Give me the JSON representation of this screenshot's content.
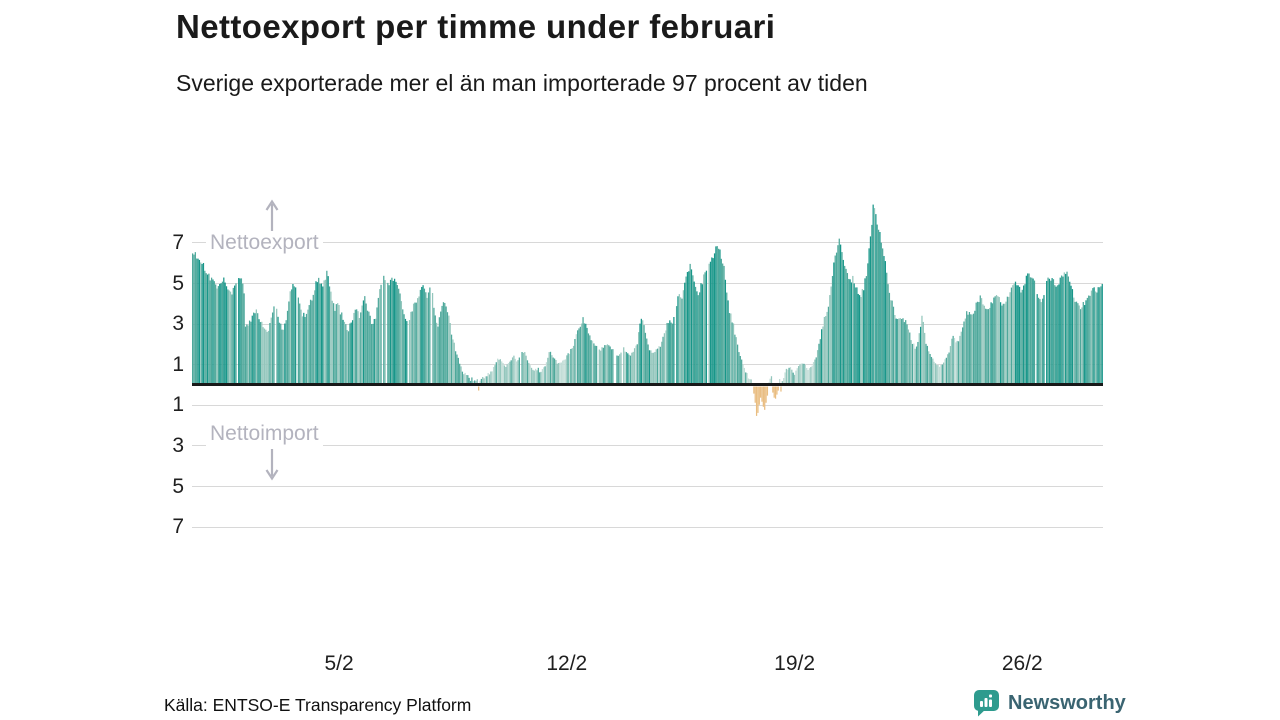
{
  "header": {
    "title": "Nettoexport per timme under februari",
    "subtitle": "Sverige exporterade mer el än man importerade 97 procent av tiden"
  },
  "footer": {
    "source": "Källa: ENTSO-E Transparency Platform",
    "brand": "Newsworthy"
  },
  "chart_data": {
    "type": "bar",
    "title": "Nettoexport per timme under februari",
    "subtitle": "Sverige exporterade mer el än man importerade 97 procent av tiden",
    "resolution": "hourly",
    "hours_total": 672,
    "direction_labels": {
      "positive": "Nettoexport",
      "negative": "Nettoimport"
    },
    "x_ticks": [
      {
        "label": "5/2",
        "hour": 108
      },
      {
        "label": "12/2",
        "hour": 276
      },
      {
        "label": "19/2",
        "hour": 444
      },
      {
        "label": "26/2",
        "hour": 612
      }
    ],
    "y_ticks": [
      7,
      5,
      3,
      1,
      -1,
      -3,
      -5,
      -7
    ],
    "ylim": [
      -7.9,
      9.4
    ],
    "grid": true,
    "colors": {
      "export_dark": "#189689",
      "export_mid": "#4ea89b",
      "export_light": "#93c6bc",
      "export_pale": "#c2ddd7",
      "import": "#e9bd81",
      "grid": "#d8d8d8",
      "zero_line": "#191919",
      "direction_label": "#b3b3be",
      "brand_teal": "#2e9b8e",
      "brand_text": "#3a6471"
    },
    "series_anchors": [
      [
        0,
        6.55
      ],
      [
        2,
        6.4
      ],
      [
        4,
        6.2
      ],
      [
        6,
        6.05
      ],
      [
        8,
        5.9
      ],
      [
        10,
        5.65
      ],
      [
        12,
        5.45
      ],
      [
        14,
        5.15
      ],
      [
        16,
        5.0
      ],
      [
        18,
        4.8
      ],
      [
        20,
        4.85
      ],
      [
        22,
        5.05
      ],
      [
        23,
        5.15
      ],
      [
        25,
        4.75
      ],
      [
        27,
        4.55
      ],
      [
        29,
        4.45
      ],
      [
        31,
        4.9
      ],
      [
        33,
        5.3
      ],
      [
        35,
        5.35
      ],
      [
        37,
        5.1
      ],
      [
        38,
        4.4
      ],
      [
        39,
        2.9
      ],
      [
        41,
        3.0
      ],
      [
        43,
        3.15
      ],
      [
        45,
        3.5
      ],
      [
        47,
        3.6
      ],
      [
        49,
        3.3
      ],
      [
        51,
        3.0
      ],
      [
        53,
        2.75
      ],
      [
        55,
        2.6
      ],
      [
        57,
        2.95
      ],
      [
        59,
        3.6
      ],
      [
        61,
        3.9
      ],
      [
        63,
        3.45
      ],
      [
        65,
        2.9
      ],
      [
        67,
        2.7
      ],
      [
        69,
        3.3
      ],
      [
        71,
        4.2
      ],
      [
        73,
        4.85
      ],
      [
        75,
        4.95
      ],
      [
        77,
        4.5
      ],
      [
        79,
        3.9
      ],
      [
        81,
        3.5
      ],
      [
        83,
        3.45
      ],
      [
        85,
        3.8
      ],
      [
        87,
        4.1
      ],
      [
        89,
        4.5
      ],
      [
        91,
        5.0
      ],
      [
        93,
        5.2
      ],
      [
        95,
        4.9
      ],
      [
        97,
        5.1
      ],
      [
        99,
        5.55
      ],
      [
        101,
        5.0
      ],
      [
        103,
        4.15
      ],
      [
        105,
        3.8
      ],
      [
        107,
        4.05
      ],
      [
        109,
        3.6
      ],
      [
        111,
        3.3
      ],
      [
        113,
        2.9
      ],
      [
        115,
        2.75
      ],
      [
        117,
        3.1
      ],
      [
        119,
        3.5
      ],
      [
        121,
        3.65
      ],
      [
        123,
        3.4
      ],
      [
        125,
        3.9
      ],
      [
        127,
        4.25
      ],
      [
        129,
        3.8
      ],
      [
        131,
        3.3
      ],
      [
        133,
        3.0
      ],
      [
        135,
        3.4
      ],
      [
        137,
        4.2
      ],
      [
        139,
        5.0
      ],
      [
        141,
        5.3
      ],
      [
        143,
        5.1
      ],
      [
        145,
        4.85
      ],
      [
        147,
        5.25
      ],
      [
        149,
        5.1
      ],
      [
        151,
        4.85
      ],
      [
        153,
        4.5
      ],
      [
        155,
        3.6
      ],
      [
        157,
        3.3
      ],
      [
        159,
        3.15
      ],
      [
        161,
        3.5
      ],
      [
        163,
        3.9
      ],
      [
        165,
        4.2
      ],
      [
        167,
        4.5
      ],
      [
        169,
        4.95
      ],
      [
        171,
        4.7
      ],
      [
        173,
        4.4
      ],
      [
        175,
        4.85
      ],
      [
        177,
        4.4
      ],
      [
        179,
        3.4
      ],
      [
        181,
        3.0
      ],
      [
        183,
        3.5
      ],
      [
        185,
        4.0
      ],
      [
        187,
        3.8
      ],
      [
        189,
        3.3
      ],
      [
        191,
        2.6
      ],
      [
        193,
        2.0
      ],
      [
        195,
        1.5
      ],
      [
        197,
        1.1
      ],
      [
        199,
        0.75
      ],
      [
        201,
        0.5
      ],
      [
        203,
        0.4
      ],
      [
        205,
        0.3
      ],
      [
        207,
        0.25
      ],
      [
        209,
        0.3
      ],
      [
        210,
        0.25
      ],
      [
        211,
        -0.2
      ],
      [
        212,
        0.25
      ],
      [
        214,
        0.35
      ],
      [
        217,
        0.5
      ],
      [
        220,
        0.65
      ],
      [
        223,
        1.0
      ],
      [
        225,
        1.3
      ],
      [
        227,
        1.25
      ],
      [
        229,
        1.05
      ],
      [
        231,
        0.9
      ],
      [
        233,
        1.1
      ],
      [
        235,
        1.25
      ],
      [
        237,
        1.4
      ],
      [
        239,
        1.15
      ],
      [
        241,
        1.3
      ],
      [
        243,
        1.55
      ],
      [
        245,
        1.6
      ],
      [
        247,
        1.2
      ],
      [
        249,
        0.95
      ],
      [
        251,
        0.7
      ],
      [
        253,
        0.8
      ],
      [
        255,
        0.75
      ],
      [
        257,
        0.6
      ],
      [
        259,
        0.8
      ],
      [
        261,
        1.1
      ],
      [
        263,
        1.7
      ],
      [
        265,
        1.5
      ],
      [
        267,
        1.3
      ],
      [
        269,
        1.05
      ],
      [
        271,
        1.1
      ],
      [
        273,
        1.15
      ],
      [
        275,
        1.3
      ],
      [
        277,
        1.5
      ],
      [
        279,
        1.7
      ],
      [
        281,
        2.0
      ],
      [
        283,
        2.4
      ],
      [
        285,
        2.8
      ],
      [
        287,
        3.1
      ],
      [
        288,
        3.2
      ],
      [
        290,
        2.9
      ],
      [
        292,
        2.5
      ],
      [
        294,
        2.2
      ],
      [
        296,
        2.0
      ],
      [
        298,
        1.9
      ],
      [
        300,
        1.75
      ],
      [
        302,
        1.8
      ],
      [
        304,
        1.95
      ],
      [
        306,
        2.05
      ],
      [
        308,
        1.9
      ],
      [
        310,
        1.7
      ],
      [
        312,
        1.55
      ],
      [
        314,
        1.5
      ],
      [
        316,
        1.65
      ],
      [
        318,
        1.8
      ],
      [
        320,
        1.6
      ],
      [
        322,
        1.45
      ],
      [
        324,
        1.55
      ],
      [
        326,
        1.75
      ],
      [
        328,
        2.1
      ],
      [
        330,
        2.9
      ],
      [
        331,
        3.3
      ],
      [
        333,
        2.9
      ],
      [
        335,
        2.2
      ],
      [
        337,
        1.8
      ],
      [
        339,
        1.6
      ],
      [
        341,
        1.7
      ],
      [
        343,
        1.8
      ],
      [
        345,
        1.9
      ],
      [
        347,
        2.3
      ],
      [
        349,
        2.8
      ],
      [
        351,
        3.1
      ],
      [
        353,
        3.0
      ],
      [
        355,
        3.3
      ],
      [
        357,
        4.0
      ],
      [
        359,
        4.5
      ],
      [
        361,
        4.3
      ],
      [
        363,
        4.9
      ],
      [
        365,
        5.5
      ],
      [
        367,
        5.9
      ],
      [
        369,
        5.4
      ],
      [
        371,
        4.7
      ],
      [
        373,
        4.5
      ],
      [
        375,
        4.9
      ],
      [
        377,
        5.3
      ],
      [
        379,
        5.6
      ],
      [
        381,
        6.0
      ],
      [
        383,
        6.2
      ],
      [
        385,
        6.5
      ],
      [
        387,
        6.9
      ],
      [
        389,
        6.6
      ],
      [
        390,
        6.3
      ],
      [
        392,
        5.9
      ],
      [
        394,
        4.6
      ],
      [
        396,
        3.6
      ],
      [
        398,
        3.2
      ],
      [
        400,
        2.6
      ],
      [
        402,
        1.9
      ],
      [
        404,
        1.4
      ],
      [
        406,
        1.0
      ],
      [
        408,
        0.7
      ],
      [
        410,
        0.4
      ],
      [
        412,
        0.2
      ],
      [
        413,
        0.1
      ],
      [
        414,
        -0.35
      ],
      [
        415,
        -0.8
      ],
      [
        416,
        -1.45
      ],
      [
        417,
        -1.3
      ],
      [
        418,
        -0.9
      ],
      [
        419,
        -0.55
      ],
      [
        420,
        -0.75
      ],
      [
        421,
        -1.0
      ],
      [
        422,
        -1.15
      ],
      [
        423,
        -0.8
      ],
      [
        424,
        -0.45
      ],
      [
        425,
        0.2
      ],
      [
        426,
        0.35
      ],
      [
        427,
        0.45
      ],
      [
        428,
        -0.3
      ],
      [
        429,
        -0.55
      ],
      [
        430,
        -0.6
      ],
      [
        431,
        -0.4
      ],
      [
        432,
        -0.2
      ],
      [
        433,
        0.25
      ],
      [
        434,
        -0.25
      ],
      [
        435,
        0.2
      ],
      [
        436,
        0.4
      ],
      [
        437,
        0.55
      ],
      [
        438,
        0.7
      ],
      [
        440,
        0.85
      ],
      [
        442,
        0.75
      ],
      [
        444,
        0.6
      ],
      [
        446,
        0.8
      ],
      [
        448,
        1.0
      ],
      [
        450,
        1.1
      ],
      [
        452,
        0.95
      ],
      [
        454,
        0.8
      ],
      [
        456,
        0.9
      ],
      [
        458,
        1.1
      ],
      [
        460,
        1.4
      ],
      [
        462,
        2.0
      ],
      [
        464,
        2.7
      ],
      [
        466,
        3.3
      ],
      [
        468,
        3.7
      ],
      [
        470,
        4.3
      ],
      [
        471,
        5.0
      ],
      [
        473,
        5.9
      ],
      [
        475,
        6.6
      ],
      [
        477,
        7.1
      ],
      [
        479,
        6.6
      ],
      [
        481,
        6.0
      ],
      [
        483,
        5.5
      ],
      [
        485,
        5.1
      ],
      [
        487,
        5.25
      ],
      [
        489,
        4.9
      ],
      [
        491,
        4.6
      ],
      [
        493,
        4.4
      ],
      [
        495,
        4.8
      ],
      [
        497,
        5.5
      ],
      [
        499,
        6.6
      ],
      [
        501,
        7.9
      ],
      [
        502,
        8.9
      ],
      [
        504,
        8.35
      ],
      [
        505,
        8.0
      ],
      [
        507,
        7.4
      ],
      [
        509,
        6.8
      ],
      [
        511,
        6.1
      ],
      [
        513,
        5.0
      ],
      [
        515,
        4.3
      ],
      [
        517,
        3.8
      ],
      [
        519,
        3.3
      ],
      [
        521,
        3.2
      ],
      [
        523,
        3.4
      ],
      [
        525,
        3.2
      ],
      [
        527,
        3.0
      ],
      [
        529,
        2.5
      ],
      [
        531,
        2.1
      ],
      [
        533,
        1.8
      ],
      [
        535,
        2.1
      ],
      [
        537,
        2.9
      ],
      [
        538,
        3.5
      ],
      [
        539,
        3.0
      ],
      [
        541,
        2.1
      ],
      [
        543,
        1.6
      ],
      [
        545,
        1.45
      ],
      [
        547,
        1.2
      ],
      [
        549,
        1.0
      ],
      [
        551,
        0.9
      ],
      [
        553,
        1.05
      ],
      [
        555,
        1.25
      ],
      [
        557,
        1.45
      ],
      [
        559,
        1.9
      ],
      [
        561,
        2.5
      ],
      [
        563,
        2.1
      ],
      [
        565,
        2.25
      ],
      [
        567,
        2.7
      ],
      [
        569,
        3.05
      ],
      [
        571,
        3.5
      ],
      [
        573,
        3.55
      ],
      [
        575,
        3.4
      ],
      [
        577,
        3.75
      ],
      [
        579,
        4.1
      ],
      [
        581,
        4.3
      ],
      [
        583,
        4.05
      ],
      [
        585,
        3.8
      ],
      [
        587,
        3.7
      ],
      [
        589,
        4.0
      ],
      [
        591,
        4.3
      ],
      [
        593,
        4.4
      ],
      [
        595,
        4.2
      ],
      [
        597,
        4.05
      ],
      [
        599,
        4.0
      ],
      [
        601,
        4.25
      ],
      [
        603,
        4.6
      ],
      [
        605,
        4.9
      ],
      [
        607,
        5.1
      ],
      [
        609,
        4.9
      ],
      [
        611,
        4.7
      ],
      [
        613,
        4.9
      ],
      [
        615,
        5.3
      ],
      [
        617,
        5.5
      ],
      [
        619,
        5.3
      ],
      [
        621,
        5.0
      ],
      [
        623,
        4.5
      ],
      [
        625,
        4.1
      ],
      [
        627,
        4.3
      ],
      [
        629,
        4.75
      ],
      [
        631,
        5.35
      ],
      [
        633,
        5.25
      ],
      [
        635,
        5.1
      ],
      [
        637,
        4.8
      ],
      [
        639,
        5.1
      ],
      [
        641,
        5.4
      ],
      [
        643,
        5.5
      ],
      [
        645,
        5.45
      ],
      [
        647,
        5.1
      ],
      [
        649,
        4.6
      ],
      [
        651,
        4.2
      ],
      [
        653,
        3.95
      ],
      [
        655,
        3.8
      ],
      [
        657,
        3.95
      ],
      [
        659,
        4.15
      ],
      [
        661,
        4.4
      ],
      [
        663,
        4.6
      ],
      [
        665,
        4.7
      ],
      [
        667,
        4.55
      ],
      [
        669,
        4.8
      ],
      [
        671,
        5.05
      ]
    ]
  }
}
